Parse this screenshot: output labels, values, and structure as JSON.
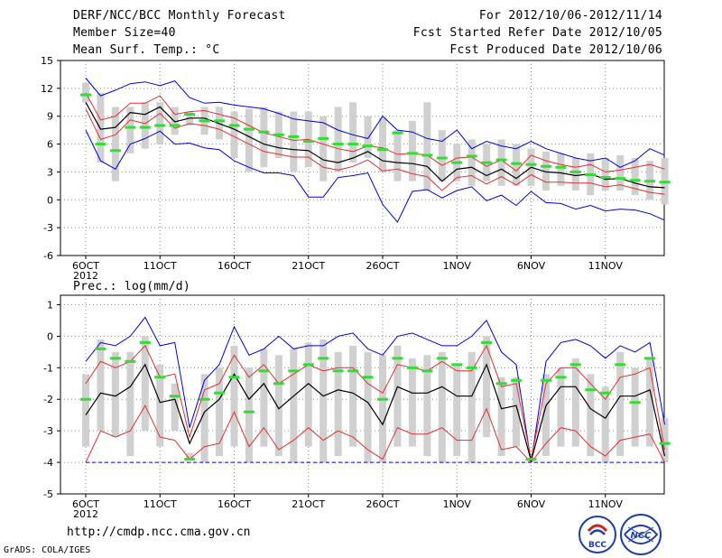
{
  "header": {
    "title": "DERF/NCC/BCC Monthly Forecast",
    "member_size": "Member Size=40",
    "forecast_range": "For 2012/10/06-2012/11/14",
    "started": "Fcst Started Refer Date 2012/10/05",
    "produced": "Fcst Produced Date 2012/10/06"
  },
  "footer": {
    "url": "http://cmdp.ncc.cma.gov.cn",
    "credit": "GrADS: COLA/IGES",
    "logo_bcc_text": "BCC",
    "logo_ncc_text": "NCC"
  },
  "colors": {
    "ensemble_mean": "#000000",
    "percentile_band": "#e03030",
    "envelope": "#0000dd",
    "box": "#d0d0d0",
    "climatology": "#33dd33",
    "axis": "#000000"
  },
  "chart_data": [
    {
      "type": "line",
      "title": "Mean Surf. Temp.: °C",
      "xlabel": "",
      "ylabel": "",
      "x_tick_labels": [
        "6OCT",
        "11OCT",
        "16OCT",
        "21OCT",
        "26OCT",
        "1NOV",
        "6NOV",
        "11NOV"
      ],
      "x_year_label": "2012",
      "ylim": [
        -6,
        15
      ],
      "y_ticks": [
        -6,
        -3,
        0,
        3,
        6,
        9,
        12,
        15
      ],
      "grid": true,
      "x": [
        1,
        2,
        3,
        4,
        5,
        6,
        7,
        8,
        9,
        10,
        11,
        12,
        13,
        14,
        15,
        16,
        17,
        18,
        19,
        20,
        21,
        22,
        23,
        24,
        25,
        26,
        27,
        28,
        29,
        30,
        31,
        32,
        33,
        34,
        35,
        36,
        37,
        38,
        39,
        40
      ],
      "series": [
        {
          "name": "max",
          "values": [
            13.1,
            11.2,
            11.8,
            12.5,
            12.7,
            12.3,
            12.8,
            11.0,
            10.4,
            10.5,
            10.2,
            10.0,
            9.8,
            9.3,
            8.7,
            8.5,
            8.3,
            7.5,
            7.0,
            6.6,
            9.0,
            7.5,
            7.3,
            6.6,
            6.3,
            7.5,
            5.5,
            6.3,
            5.8,
            5.5,
            6.3,
            5.5,
            5.0,
            4.5,
            4.2,
            4.5,
            3.5,
            4.2,
            5.5,
            4.8
          ]
        },
        {
          "name": "p90",
          "values": [
            11.5,
            8.6,
            9.0,
            10.4,
            10.4,
            11.2,
            9.2,
            9.5,
            9.6,
            9.2,
            8.8,
            8.0,
            7.2,
            6.8,
            6.4,
            6.5,
            6.0,
            5.5,
            5.2,
            5.8,
            5.6,
            4.9,
            5.0,
            4.8,
            3.7,
            4.5,
            4.6,
            3.6,
            4.3,
            3.1,
            4.8,
            4.2,
            3.8,
            3.5,
            3.8,
            3.0,
            3.2,
            3.5,
            3.8,
            3.3
          ]
        },
        {
          "name": "mean",
          "values": [
            10.5,
            7.6,
            7.8,
            9.4,
            9.2,
            10.0,
            8.4,
            8.8,
            8.8,
            8.2,
            7.6,
            6.8,
            6.0,
            5.6,
            5.4,
            5.3,
            4.3,
            4.0,
            4.5,
            5.2,
            4.2,
            4.0,
            3.9,
            3.6,
            2.0,
            3.3,
            3.5,
            2.6,
            3.3,
            2.3,
            3.5,
            3.0,
            2.9,
            2.6,
            2.8,
            2.2,
            2.3,
            1.8,
            1.4,
            1.3
          ]
        },
        {
          "name": "p10",
          "values": [
            9.8,
            6.5,
            7.0,
            8.6,
            8.2,
            9.3,
            7.7,
            8.2,
            8.0,
            7.6,
            6.8,
            6.0,
            5.2,
            4.9,
            4.6,
            4.6,
            3.5,
            3.2,
            3.6,
            4.3,
            3.1,
            3.3,
            2.8,
            2.5,
            1.0,
            2.4,
            2.6,
            1.7,
            2.5,
            1.6,
            2.7,
            1.9,
            1.9,
            1.8,
            1.8,
            1.4,
            1.6,
            1.2,
            0.8,
            0.6
          ]
        },
        {
          "name": "min",
          "values": [
            7.5,
            4.2,
            3.3,
            6.0,
            6.6,
            7.4,
            6.0,
            6.1,
            5.6,
            5.4,
            4.2,
            3.5,
            2.9,
            2.9,
            2.6,
            0.3,
            0.3,
            2.4,
            2.6,
            2.9,
            -0.5,
            -2.4,
            0.9,
            1.1,
            0.2,
            1.0,
            1.4,
            -0.1,
            0.5,
            -0.6,
            0.9,
            -0.3,
            -0.4,
            -1.0,
            -0.6,
            -1.2,
            -1.0,
            -1.1,
            -1.5,
            -2.2
          ]
        },
        {
          "name": "box_high",
          "values": [
            12.6,
            11.5,
            10.0,
            10.0,
            10.5,
            10.5,
            10.0,
            9.5,
            10.0,
            10.0,
            9.5,
            9.8,
            10.0,
            9.5,
            9.5,
            9.5,
            9.0,
            10.0,
            10.5,
            9.0,
            8.8,
            7.5,
            8.5,
            10.5,
            7.5,
            6.0,
            6.5,
            6.0,
            6.5,
            6.0,
            5.5,
            5.2,
            5.0,
            4.5,
            5.0,
            4.5,
            4.8,
            4.5,
            4.2,
            4.5
          ]
        },
        {
          "name": "box_low",
          "values": [
            10.5,
            4.0,
            2.0,
            5.0,
            5.5,
            6.0,
            7.0,
            8.0,
            7.0,
            6.5,
            4.5,
            3.0,
            3.5,
            4.5,
            3.0,
            3.5,
            2.0,
            3.0,
            4.0,
            4.5,
            3.0,
            2.0,
            2.0,
            1.0,
            2.0,
            2.0,
            1.5,
            2.0,
            1.5,
            1.5,
            1.5,
            1.0,
            1.5,
            1.0,
            0.5,
            1.0,
            1.0,
            0.5,
            0.0,
            -0.5
          ]
        },
        {
          "name": "climatology",
          "values": [
            11.3,
            6.0,
            5.3,
            7.8,
            7.8,
            8.0,
            8.0,
            9.2,
            8.5,
            8.5,
            8.0,
            7.6,
            7.3,
            7.0,
            6.8,
            6.3,
            6.6,
            6.0,
            6.0,
            5.8,
            5.4,
            7.2,
            5.0,
            4.8,
            4.5,
            4.0,
            4.7,
            4.0,
            4.3,
            3.9,
            3.8,
            3.6,
            3.5,
            3.0,
            2.7,
            2.4,
            2.3,
            2.1,
            2.0,
            1.9
          ]
        }
      ]
    },
    {
      "type": "line",
      "title": "Prec.: log(mm/d)",
      "xlabel": "",
      "ylabel": "",
      "x_tick_labels": [
        "6OCT",
        "11OCT",
        "16OCT",
        "21OCT",
        "26OCT",
        "1NOV",
        "6NOV",
        "11NOV"
      ],
      "x_year_label": "2012",
      "ylim": [
        -5,
        1.3
      ],
      "y_ticks": [
        -5,
        -4,
        -3,
        -2,
        -1,
        0,
        1
      ],
      "grid": true,
      "x": [
        1,
        2,
        3,
        4,
        5,
        6,
        7,
        8,
        9,
        10,
        11,
        12,
        13,
        14,
        15,
        16,
        17,
        18,
        19,
        20,
        21,
        22,
        23,
        24,
        25,
        26,
        27,
        28,
        29,
        30,
        31,
        32,
        33,
        34,
        35,
        36,
        37,
        38,
        39,
        40
      ],
      "series": [
        {
          "name": "max",
          "values": [
            -0.8,
            -0.2,
            -0.3,
            0.0,
            0.6,
            -0.3,
            -0.2,
            -2.9,
            -1.4,
            -0.9,
            0.3,
            -0.6,
            -0.4,
            0.0,
            -0.4,
            -0.3,
            -0.3,
            0.0,
            0.1,
            -0.4,
            -0.6,
            0.0,
            0.1,
            -0.1,
            -0.3,
            -0.3,
            0.0,
            0.5,
            -0.5,
            -0.9,
            -4.0,
            -0.8,
            -0.2,
            -0.1,
            -0.3,
            -0.7,
            -0.3,
            -0.5,
            -0.2,
            -2.8
          ]
        },
        {
          "name": "p90",
          "values": [
            -1.5,
            -0.8,
            -1.0,
            -0.8,
            -0.3,
            -1.3,
            -1.2,
            -3.2,
            -1.7,
            -1.5,
            -0.6,
            -1.3,
            -0.9,
            -1.5,
            -1.2,
            -0.9,
            -1.1,
            -1.0,
            -1.0,
            -1.5,
            -1.8,
            -0.9,
            -1.0,
            -1.1,
            -0.8,
            -1.1,
            -1.1,
            -0.3,
            -1.6,
            -1.5,
            -3.9,
            -1.5,
            -1.0,
            -1.0,
            -1.5,
            -2.0,
            -1.3,
            -1.2,
            -1.0,
            -3.6
          ]
        },
        {
          "name": "mean",
          "values": [
            -2.5,
            -1.8,
            -1.9,
            -1.6,
            -0.9,
            -2.1,
            -2.0,
            -3.4,
            -2.4,
            -2.0,
            -1.2,
            -2.0,
            -1.5,
            -2.3,
            -1.9,
            -1.5,
            -1.9,
            -1.7,
            -1.8,
            -2.1,
            -2.8,
            -1.6,
            -1.8,
            -1.8,
            -1.6,
            -1.9,
            -1.9,
            -0.9,
            -2.3,
            -2.2,
            -3.95,
            -2.2,
            -1.6,
            -1.6,
            -2.3,
            -2.6,
            -1.9,
            -1.9,
            -1.7,
            -3.8
          ]
        },
        {
          "name": "p10",
          "values": [
            -4.0,
            -3.0,
            -3.2,
            -3.0,
            -2.2,
            -3.2,
            -3.3,
            -3.9,
            -3.5,
            -3.4,
            -2.4,
            -3.5,
            -2.9,
            -3.6,
            -3.3,
            -2.9,
            -3.3,
            -3.0,
            -3.2,
            -3.6,
            -3.9,
            -2.9,
            -3.1,
            -3.1,
            -2.9,
            -3.3,
            -3.3,
            -2.3,
            -3.6,
            -3.5,
            -4.0,
            -3.4,
            -2.9,
            -3.0,
            -3.5,
            -3.8,
            -3.3,
            -3.2,
            -3.1,
            -4.0
          ]
        },
        {
          "name": "min",
          "values": [
            -4.0,
            -4.0,
            -4.0,
            -4.0,
            -4.0,
            -4.0,
            -4.0,
            -4.0,
            -4.0,
            -4.0,
            -4.0,
            -4.0,
            -4.0,
            -4.0,
            -4.0,
            -4.0,
            -4.0,
            -4.0,
            -4.0,
            -4.0,
            -4.0,
            -4.0,
            -4.0,
            -4.0,
            -4.0,
            -4.0,
            -4.0,
            -4.0,
            -4.0,
            -4.0,
            -4.0,
            -4.0,
            -4.0,
            -4.0,
            -4.0,
            -4.0,
            -4.0,
            -4.0,
            -4.0,
            -4.0
          ]
        },
        {
          "name": "box_high",
          "values": [
            -1.2,
            -0.1,
            -0.5,
            -0.5,
            0.0,
            -0.9,
            -1.5,
            -3.7,
            -1.2,
            -1.0,
            -0.3,
            -1.0,
            -0.4,
            -0.6,
            -0.4,
            -0.2,
            -0.1,
            -0.5,
            -0.3,
            -0.5,
            -0.6,
            -0.3,
            -0.7,
            -0.6,
            -0.5,
            -0.9,
            -0.5,
            0.0,
            -1.3,
            -1.3,
            -3.9,
            -1.2,
            -1.0,
            -0.7,
            -1.2,
            -1.6,
            -0.5,
            -1.0,
            -0.7,
            -2.6
          ]
        },
        {
          "name": "box_low",
          "values": [
            -3.5,
            -3.0,
            -3.2,
            -3.8,
            -3.0,
            -3.5,
            -3.0,
            -3.9,
            -4.0,
            -3.8,
            -3.5,
            -4.0,
            -3.5,
            -3.8,
            -4.0,
            -3.5,
            -4.0,
            -3.8,
            -3.5,
            -4.0,
            -4.0,
            -3.5,
            -3.5,
            -3.8,
            -4.0,
            -3.8,
            -4.0,
            -3.2,
            -3.8,
            -3.5,
            -4.0,
            -3.8,
            -3.5,
            -3.5,
            -3.8,
            -4.0,
            -3.8,
            -3.5,
            -3.5,
            -4.0
          ]
        },
        {
          "name": "climatology",
          "values": [
            -2.0,
            -0.4,
            -0.7,
            -0.8,
            -0.2,
            -1.3,
            -1.9,
            -3.9,
            -2.0,
            -1.8,
            -1.3,
            -2.4,
            -1.1,
            -1.5,
            -1.1,
            -0.9,
            -0.7,
            -1.1,
            -1.1,
            -1.3,
            -2.0,
            -0.7,
            -1.0,
            -1.1,
            -0.7,
            -0.9,
            -1.0,
            -0.2,
            -1.5,
            -1.4,
            -3.9,
            -1.4,
            -1.3,
            -0.9,
            -1.7,
            -1.8,
            -0.9,
            -2.1,
            -0.7,
            -3.4
          ]
        }
      ]
    }
  ]
}
